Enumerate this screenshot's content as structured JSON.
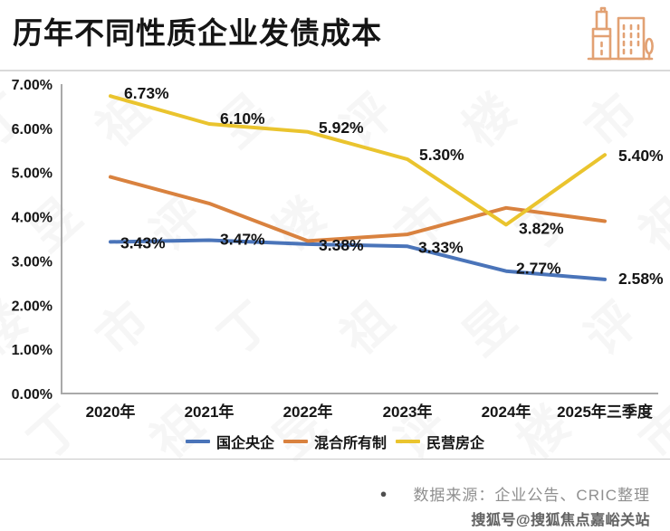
{
  "header": {
    "title": "历年不同性质企业发债成本",
    "icon": "buildings-icon",
    "icon_color": "#e2a173"
  },
  "chart_data": {
    "type": "line",
    "title": "历年不同性质企业发债成本",
    "categories": [
      "2020年",
      "2021年",
      "2022年",
      "2023年",
      "2024年",
      "2025年三季度"
    ],
    "series": [
      {
        "name": "国企央企",
        "color": "#4a74b9",
        "values": [
          3.43,
          3.47,
          3.38,
          3.33,
          2.77,
          2.58
        ],
        "labels": [
          "3.43%",
          "3.47%",
          "3.38%",
          "3.33%",
          "2.77%",
          "2.58%"
        ]
      },
      {
        "name": "混合所有制",
        "color": "#d9823f",
        "values": [
          4.9,
          4.3,
          3.45,
          3.6,
          4.2,
          3.9
        ],
        "labels": null
      },
      {
        "name": "民营房企",
        "color": "#eac42e",
        "values": [
          6.73,
          6.1,
          5.92,
          5.3,
          3.82,
          5.4
        ],
        "labels": [
          "6.73%",
          "6.10%",
          "5.92%",
          "5.30%",
          "3.82%",
          "5.40%"
        ]
      }
    ],
    "ylim": [
      0,
      7
    ],
    "yticks": [
      "7.00%",
      "6.00%",
      "5.00%",
      "4.00%",
      "3.00%",
      "2.00%",
      "1.00%",
      "0.00%"
    ],
    "xlabel": "",
    "ylabel": "",
    "grid": false,
    "legend_position": "bottom",
    "axis_color": "#a9a9a9"
  },
  "footer": {
    "source_bullet": "●",
    "source": "数据来源：企业公告、CRIC整理",
    "sohu_watermark": "搜狐号@搜狐焦点嘉峪关站"
  },
  "watermark": {
    "text": "丁祖昱评楼市"
  }
}
